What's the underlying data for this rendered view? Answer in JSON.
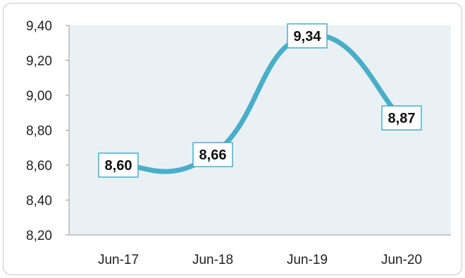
{
  "chart_data": {
    "type": "line",
    "categories": [
      "Jun-17",
      "Jun-18",
      "Jun-19",
      "Jun-20"
    ],
    "series": [
      {
        "values": [
          8.6,
          8.66,
          9.34,
          8.87
        ],
        "labels": [
          "8,60",
          "8,66",
          "9,34",
          "8,87"
        ]
      }
    ],
    "ylim": [
      8.2,
      9.4
    ],
    "yticks": [
      "8,20",
      "8,40",
      "8,60",
      "8,80",
      "9,00",
      "9,20",
      "9,40"
    ],
    "title": "",
    "xlabel": "",
    "ylabel": "",
    "grid": false,
    "legend": "none",
    "line_color": "#4aaec9",
    "plot_bg": "#e9f1f5",
    "axis_color": "#9a9a9a",
    "label_border": "#4aaec9"
  }
}
